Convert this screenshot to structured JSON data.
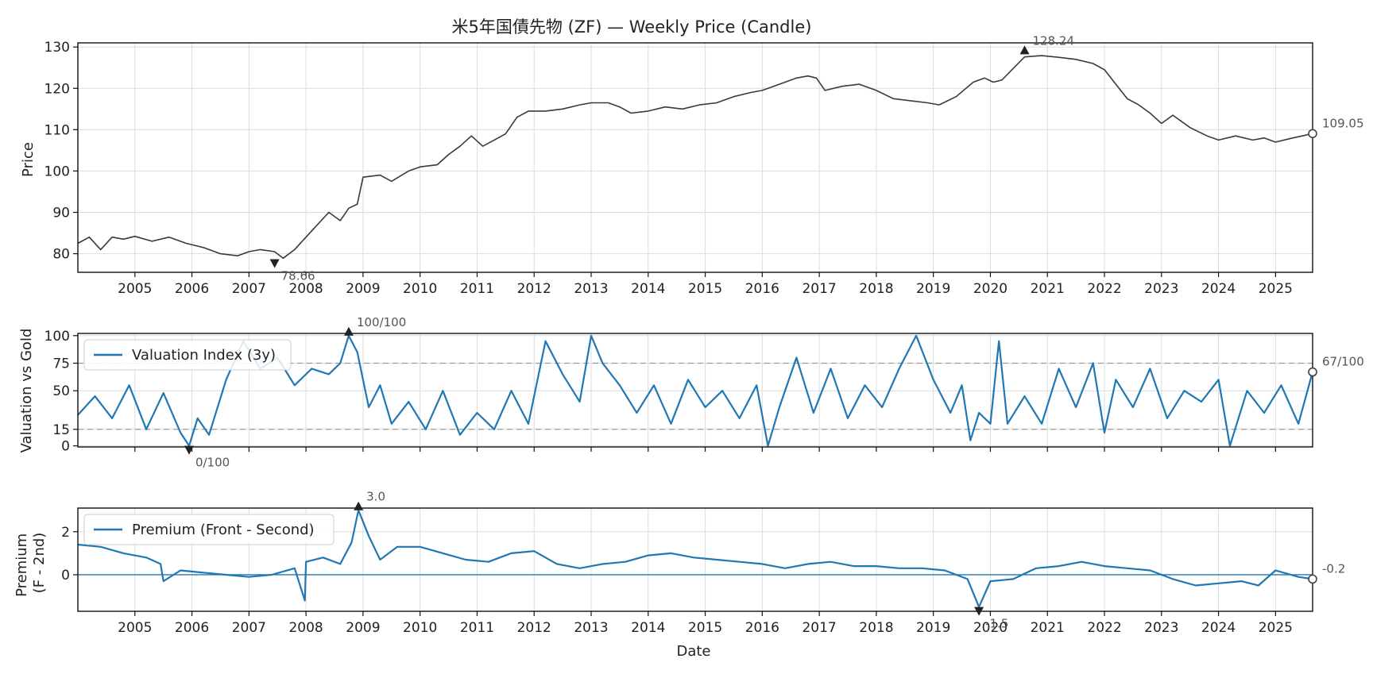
{
  "chart_data": [
    {
      "id": "price",
      "type": "line",
      "title": "米5年国債先物 (ZF) — Weekly Price (Candle)",
      "ylabel": "Price",
      "xlim": [
        2004.0,
        2025.65
      ],
      "ylim": [
        75.5,
        131
      ],
      "yticks": [
        80,
        90,
        100,
        110,
        120,
        130
      ],
      "xticks": [
        2005,
        2006,
        2007,
        2008,
        2009,
        2010,
        2011,
        2012,
        2013,
        2014,
        2015,
        2016,
        2017,
        2018,
        2019,
        2020,
        2021,
        2022,
        2023,
        2024,
        2025
      ],
      "grid": true,
      "color": "#3a3a3a",
      "series": [
        {
          "x": [
            2004.0,
            2004.2,
            2004.4,
            2004.6,
            2004.8,
            2005.0,
            2005.3,
            2005.6,
            2005.9,
            2006.2,
            2006.5,
            2006.8,
            2007.0,
            2007.2,
            2007.45,
            2007.6,
            2007.8,
            2008.0,
            2008.2,
            2008.4,
            2008.6,
            2008.75,
            2008.9,
            2009.0,
            2009.3,
            2009.5,
            2009.8,
            2010.0,
            2010.3,
            2010.5,
            2010.7,
            2010.9,
            2011.1,
            2011.3,
            2011.5,
            2011.7,
            2011.9,
            2012.2,
            2012.5,
            2012.8,
            2013.0,
            2013.3,
            2013.5,
            2013.7,
            2014.0,
            2014.3,
            2014.6,
            2014.9,
            2015.2,
            2015.5,
            2015.8,
            2016.0,
            2016.3,
            2016.6,
            2016.8,
            2016.95,
            2017.1,
            2017.4,
            2017.7,
            2018.0,
            2018.3,
            2018.6,
            2018.9,
            2019.1,
            2019.4,
            2019.7,
            2019.9,
            2020.05,
            2020.2,
            2020.6,
            2020.9,
            2021.2,
            2021.5,
            2021.8,
            2022.0,
            2022.2,
            2022.4,
            2022.6,
            2022.8,
            2023.0,
            2023.2,
            2023.5,
            2023.8,
            2024.0,
            2024.3,
            2024.6,
            2024.8,
            2025.0,
            2025.3,
            2025.65
          ],
          "values": [
            82.5,
            84,
            81,
            84,
            83.5,
            84.2,
            83,
            84,
            82.5,
            81.5,
            80,
            79.5,
            80.5,
            81,
            80.5,
            78.9,
            81,
            84,
            87,
            90,
            88,
            91,
            92,
            98.5,
            99,
            97.5,
            100,
            101,
            101.5,
            104,
            106,
            108.5,
            106,
            107.5,
            109,
            113,
            114.5,
            114.5,
            115,
            116,
            116.5,
            116.5,
            115.5,
            114,
            114.5,
            115.5,
            115,
            116,
            116.5,
            118,
            119,
            119.5,
            121,
            122.5,
            123,
            122.5,
            119.5,
            120.5,
            121,
            119.5,
            117.5,
            117,
            116.5,
            116,
            118,
            121.5,
            122.5,
            121.5,
            122,
            127.6,
            127.9,
            127.5,
            127,
            126,
            124.5,
            121,
            117.5,
            116,
            114,
            111.5,
            113.5,
            110.5,
            108.5,
            107.5,
            108.5,
            107.5,
            108,
            107,
            108,
            109.05
          ]
        }
      ],
      "annotations": [
        {
          "label": "128.24",
          "x": 2020.6,
          "y": 128.24,
          "marker": "max"
        },
        {
          "label": "78.66",
          "x": 2007.45,
          "y": 78.66,
          "marker": "min"
        },
        {
          "label": "109.05",
          "x": 2025.65,
          "y": 109.05,
          "marker": "last"
        }
      ]
    },
    {
      "id": "valuation",
      "type": "line",
      "ylabel": "Valuation vs Gold",
      "xlim": [
        2004.0,
        2025.65
      ],
      "ylim": [
        -1,
        102
      ],
      "yticks": [
        0,
        15,
        50,
        75,
        100
      ],
      "reference_lines": [
        15,
        75
      ],
      "xticks": [
        2005,
        2006,
        2007,
        2008,
        2009,
        2010,
        2011,
        2012,
        2013,
        2014,
        2015,
        2016,
        2017,
        2018,
        2019,
        2020,
        2021,
        2022,
        2023,
        2024,
        2025
      ],
      "grid": true,
      "legend": "upper-left",
      "color": "#1f77b4",
      "series": [
        {
          "name": "Valuation Index (3y)",
          "x": [
            2004.0,
            2004.3,
            2004.6,
            2004.9,
            2005.2,
            2005.5,
            2005.8,
            2005.95,
            2006.1,
            2006.3,
            2006.6,
            2006.9,
            2007.2,
            2007.5,
            2007.8,
            2008.1,
            2008.4,
            2008.6,
            2008.75,
            2008.9,
            2009.1,
            2009.3,
            2009.5,
            2009.8,
            2010.1,
            2010.4,
            2010.7,
            2011.0,
            2011.3,
            2011.6,
            2011.9,
            2012.2,
            2012.5,
            2012.8,
            2013.0,
            2013.2,
            2013.5,
            2013.8,
            2014.1,
            2014.4,
            2014.7,
            2015.0,
            2015.3,
            2015.6,
            2015.9,
            2016.1,
            2016.3,
            2016.6,
            2016.9,
            2017.2,
            2017.5,
            2017.8,
            2018.1,
            2018.4,
            2018.7,
            2019.0,
            2019.3,
            2019.5,
            2019.65,
            2019.8,
            2020.0,
            2020.15,
            2020.3,
            2020.6,
            2020.9,
            2021.2,
            2021.5,
            2021.8,
            2022.0,
            2022.2,
            2022.5,
            2022.8,
            2023.1,
            2023.4,
            2023.7,
            2024.0,
            2024.2,
            2024.5,
            2024.8,
            2025.1,
            2025.4,
            2025.65
          ],
          "values": [
            28,
            45,
            25,
            55,
            15,
            48,
            12,
            0,
            25,
            10,
            60,
            95,
            70,
            80,
            55,
            70,
            65,
            75,
            100,
            85,
            35,
            55,
            20,
            40,
            15,
            50,
            10,
            30,
            15,
            50,
            20,
            95,
            65,
            40,
            100,
            75,
            55,
            30,
            55,
            20,
            60,
            35,
            50,
            25,
            55,
            0,
            35,
            80,
            30,
            70,
            25,
            55,
            35,
            70,
            100,
            60,
            30,
            55,
            5,
            30,
            20,
            95,
            20,
            45,
            20,
            70,
            35,
            75,
            12,
            60,
            35,
            70,
            25,
            50,
            40,
            60,
            0,
            50,
            30,
            55,
            20,
            67
          ]
        }
      ],
      "annotations": [
        {
          "label": "100/100",
          "x": 2008.75,
          "y": 100,
          "marker": "max"
        },
        {
          "label": "0/100",
          "x": 2005.95,
          "y": 0,
          "marker": "min"
        },
        {
          "label": "67/100",
          "x": 2025.65,
          "y": 67,
          "marker": "last"
        }
      ]
    },
    {
      "id": "premium",
      "type": "line",
      "ylabel": "Premium\n(F - 2nd)",
      "xlabel": "Date",
      "xlim": [
        2004.0,
        2025.65
      ],
      "ylim": [
        -1.7,
        3.1
      ],
      "yticks": [
        0,
        2
      ],
      "reference_lines": [
        0
      ],
      "xticks": [
        2005,
        2006,
        2007,
        2008,
        2009,
        2010,
        2011,
        2012,
        2013,
        2014,
        2015,
        2016,
        2017,
        2018,
        2019,
        2020,
        2021,
        2022,
        2023,
        2024,
        2025
      ],
      "grid": true,
      "legend": "upper-left",
      "color": "#1f77b4",
      "series": [
        {
          "name": "Premium (Front - Second)",
          "x": [
            2004.0,
            2004.4,
            2004.8,
            2005.2,
            2005.45,
            2005.5,
            2005.8,
            2006.2,
            2006.6,
            2007.0,
            2007.4,
            2007.8,
            2007.98,
            2008.0,
            2008.3,
            2008.6,
            2008.8,
            2008.92,
            2009.1,
            2009.3,
            2009.6,
            2010.0,
            2010.4,
            2010.8,
            2011.2,
            2011.6,
            2012.0,
            2012.4,
            2012.8,
            2013.2,
            2013.6,
            2014.0,
            2014.4,
            2014.8,
            2015.2,
            2015.6,
            2016.0,
            2016.4,
            2016.8,
            2017.2,
            2017.6,
            2018.0,
            2018.4,
            2018.8,
            2019.2,
            2019.6,
            2019.8,
            2020.0,
            2020.4,
            2020.8,
            2021.2,
            2021.6,
            2022.0,
            2022.4,
            2022.8,
            2023.2,
            2023.6,
            2024.0,
            2024.4,
            2024.7,
            2025.0,
            2025.4,
            2025.65
          ],
          "values": [
            1.4,
            1.3,
            1.0,
            0.8,
            0.5,
            -0.3,
            0.2,
            0.1,
            0.0,
            -0.1,
            0.0,
            0.3,
            -1.2,
            0.6,
            0.8,
            0.5,
            1.5,
            3.0,
            1.8,
            0.7,
            1.3,
            1.3,
            1.0,
            0.7,
            0.6,
            1.0,
            1.1,
            0.5,
            0.3,
            0.5,
            0.6,
            0.9,
            1.0,
            0.8,
            0.7,
            0.6,
            0.5,
            0.3,
            0.5,
            0.6,
            0.4,
            0.4,
            0.3,
            0.3,
            0.2,
            -0.2,
            -1.5,
            -0.3,
            -0.2,
            0.3,
            0.4,
            0.6,
            0.4,
            0.3,
            0.2,
            -0.2,
            -0.5,
            -0.4,
            -0.3,
            -0.5,
            0.2,
            -0.1,
            -0.2
          ]
        }
      ],
      "annotations": [
        {
          "label": "3.0",
          "x": 2008.92,
          "y": 3.0,
          "marker": "max"
        },
        {
          "label": "-1.5",
          "x": 2019.8,
          "y": -1.5,
          "marker": "min"
        },
        {
          "label": "-0.2",
          "x": 2025.65,
          "y": -0.2,
          "marker": "last"
        }
      ]
    }
  ]
}
